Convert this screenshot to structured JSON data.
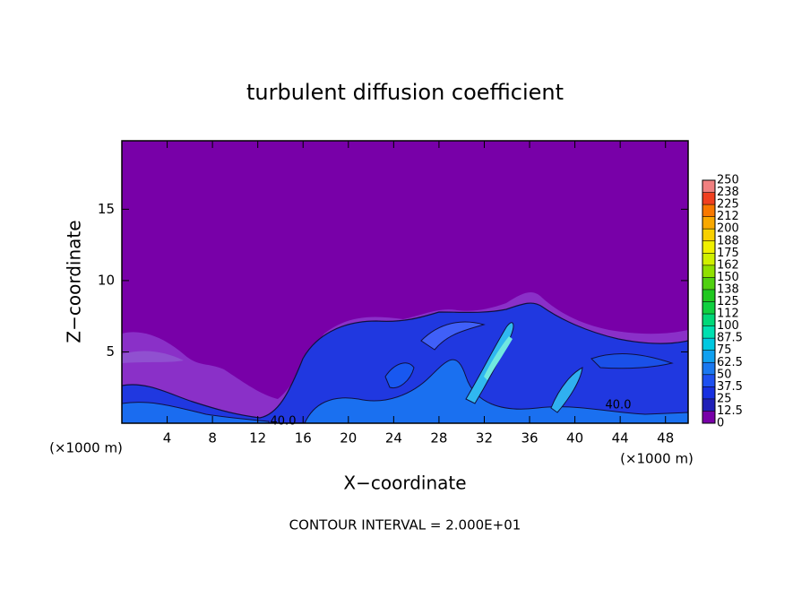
{
  "chart_data": {
    "type": "contour",
    "title": "turbulent diffusion coefficient",
    "x_label": "X−coordinate",
    "y_label": "Z−coordinate",
    "x_unit_label": "(×1000 m)",
    "x_unit_label_right": "(×1000 m)",
    "footnote": "CONTOUR INTERVAL = 2.000E+01",
    "contour_labels": [
      "40.0",
      "40.0"
    ],
    "xlim": [
      0,
      50
    ],
    "ylim": [
      0,
      19.8
    ],
    "xticks": [
      4,
      8,
      12,
      16,
      20,
      24,
      28,
      32,
      36,
      40,
      44,
      48
    ],
    "yticks": [
      5,
      10,
      15
    ],
    "colorbar": {
      "levels": [
        0,
        12.5,
        25,
        37.5,
        50,
        62.5,
        75,
        87.5,
        100,
        112,
        125,
        138,
        150,
        162,
        175,
        188,
        200,
        212,
        225,
        238,
        250
      ],
      "colors": [
        "#7800a8",
        "#2020b8",
        "#1830e0",
        "#1e50f0",
        "#1a78f0",
        "#10a0f0",
        "#00c8e0",
        "#00e0b0",
        "#00d878",
        "#10d040",
        "#20c820",
        "#50d010",
        "#90e000",
        "#d0f000",
        "#f0f000",
        "#f8d000",
        "#f8a800",
        "#f87800",
        "#f04020",
        "#f08080"
      ]
    }
  }
}
